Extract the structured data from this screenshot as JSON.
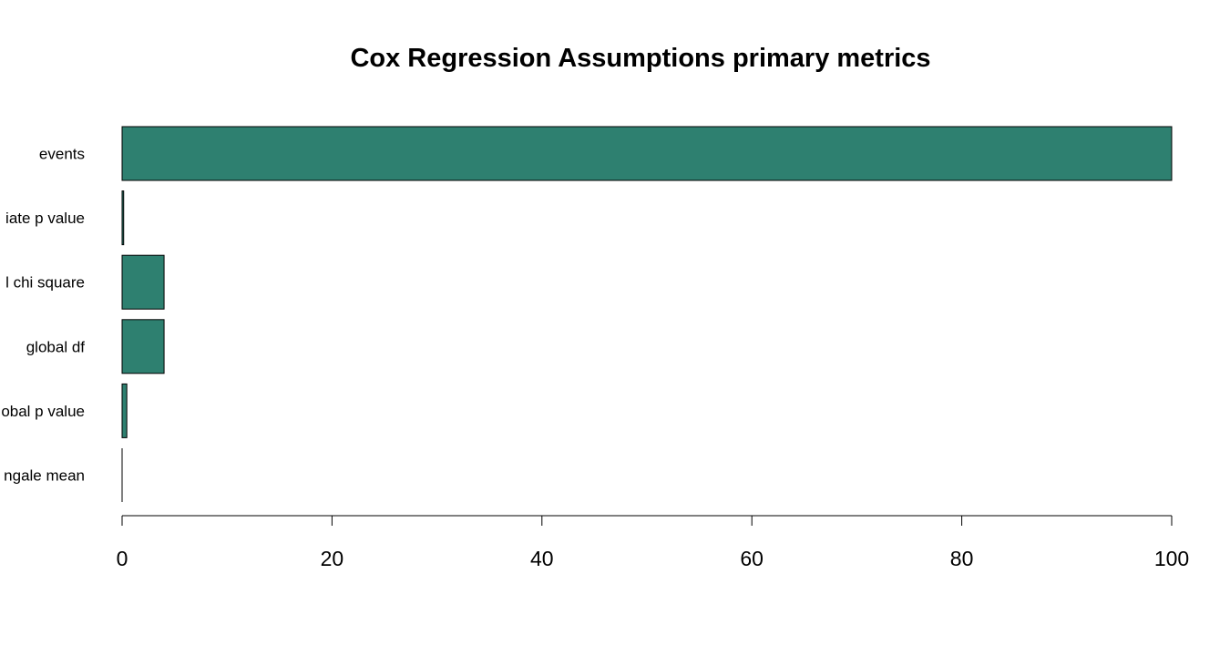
{
  "chart_data": {
    "type": "bar",
    "orientation": "horizontal",
    "title": "Cox Regression Assumptions primary metrics",
    "xlabel": "",
    "ylabel": "",
    "categories": [
      "events",
      "univariate p value",
      "global chi square",
      "global df",
      "global p value",
      "martingale mean"
    ],
    "category_labels_visible": [
      "events",
      "iate p value",
      "l chi square",
      "global df",
      "obal p value",
      "ngale mean"
    ],
    "values": [
      100,
      0.15,
      4.0,
      4.0,
      0.45,
      0.0
    ],
    "xlim": [
      0,
      100
    ],
    "xticks": [
      "0",
      "20",
      "40",
      "60",
      "80",
      "100"
    ],
    "bar_color": "#2e8070",
    "bar_edge_color": "#000000",
    "grid": false,
    "legend": "none"
  }
}
